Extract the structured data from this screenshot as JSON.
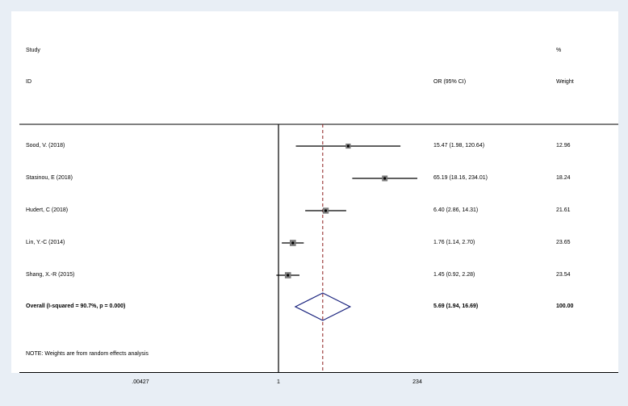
{
  "chart_data": {
    "type": "forest",
    "headers": {
      "study_line1": "Study",
      "study_line2": "ID",
      "or": "OR (95% CI)",
      "weight_line1": "%",
      "weight_line2": "Weight"
    },
    "studies": [
      {
        "label": "Sood, V. (2018)",
        "or": 15.47,
        "lo": 1.98,
        "hi": 120.64,
        "ci_text": "15.47 (1.98, 120.64)",
        "weight": 12.96,
        "weight_text": "12.96"
      },
      {
        "label": "Stasinou, E (2018)",
        "or": 65.19,
        "lo": 18.16,
        "hi": 234.01,
        "ci_text": "65.19 (18.16, 234.01)",
        "weight": 18.24,
        "weight_text": "18.24"
      },
      {
        "label": "Hudert, C (2018)",
        "or": 6.4,
        "lo": 2.86,
        "hi": 14.31,
        "ci_text": "6.40 (2.86, 14.31)",
        "weight": 21.61,
        "weight_text": "21.61"
      },
      {
        "label": "Lin, Y.-C (2014)",
        "or": 1.76,
        "lo": 1.14,
        "hi": 2.7,
        "ci_text": "1.76 (1.14, 2.70)",
        "weight": 23.65,
        "weight_text": "23.65"
      },
      {
        "label": "Shang, X.-R (2015)",
        "or": 1.45,
        "lo": 0.92,
        "hi": 2.28,
        "ci_text": "1.45 (0.92, 2.28)",
        "weight": 23.54,
        "weight_text": "23.54"
      }
    ],
    "overall": {
      "label": "Overall  (I-squared = 90.7%, p = 0.000)",
      "or": 5.69,
      "lo": 1.94,
      "hi": 16.69,
      "ci_text": "5.69 (1.94, 16.69)",
      "weight_text": "100.00"
    },
    "note": "NOTE: Weights are from random effects analysis",
    "x_scale": "log",
    "xlim": [
      0.00427,
      234
    ],
    "ticks": [
      {
        "value": 0.00427,
        "label": ".00427"
      },
      {
        "value": 1,
        "label": "1"
      },
      {
        "value": 234,
        "label": "234"
      }
    ],
    "null_line": 1,
    "colors": {
      "overall_line": "#8b1a1a",
      "diamond": "#1a237e",
      "ci_line": "#000000",
      "box": "#808080"
    }
  }
}
